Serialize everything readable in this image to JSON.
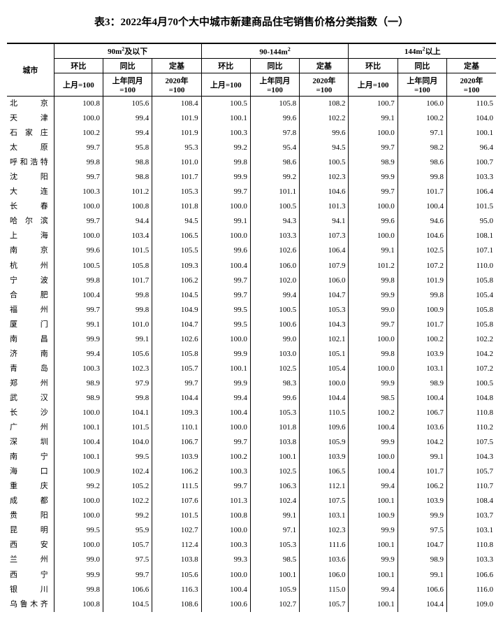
{
  "title": "表3：2022年4月70个大中城市新建商品住宅销售价格分类指数（一）",
  "col_city": "城市",
  "groups": [
    {
      "label_pre": "90m",
      "sup": "2",
      "label_post": "及以下"
    },
    {
      "label_pre": "90-144m",
      "sup": "2",
      "label_post": ""
    },
    {
      "label_pre": "144m",
      "sup": "2",
      "label_post": "以上"
    }
  ],
  "sub_labels": {
    "hb": "环比",
    "tb": "同比",
    "dj": "定基"
  },
  "base_labels": {
    "hb": "上月=100",
    "tb_l1": "上年同月",
    "tb_l2": "=100",
    "dj_l1": "2020年",
    "dj_l2": "=100"
  },
  "rows": [
    {
      "city": "北京",
      "v": [
        100.8,
        105.6,
        108.4,
        100.5,
        105.8,
        108.2,
        100.7,
        106.0,
        110.5
      ]
    },
    {
      "city": "天津",
      "v": [
        100.0,
        99.4,
        101.9,
        100.1,
        99.6,
        102.2,
        99.1,
        100.2,
        104.0
      ]
    },
    {
      "city": "石家庄",
      "v": [
        100.2,
        99.4,
        101.9,
        100.3,
        97.8,
        99.6,
        100.0,
        97.1,
        100.1
      ]
    },
    {
      "city": "太原",
      "v": [
        99.7,
        95.8,
        95.3,
        99.2,
        95.4,
        94.5,
        99.7,
        98.2,
        96.4
      ]
    },
    {
      "city": "呼和浩特",
      "v": [
        99.8,
        98.8,
        101.0,
        99.8,
        98.6,
        100.5,
        98.9,
        98.6,
        100.7
      ]
    },
    {
      "city": "沈阳",
      "v": [
        99.7,
        98.8,
        101.7,
        99.9,
        99.2,
        102.3,
        99.9,
        99.8,
        103.3
      ]
    },
    {
      "city": "大连",
      "v": [
        100.3,
        101.2,
        105.3,
        99.7,
        101.1,
        104.6,
        99.7,
        101.7,
        106.4
      ]
    },
    {
      "city": "长春",
      "v": [
        100.0,
        100.8,
        101.8,
        100.0,
        100.5,
        101.3,
        100.0,
        100.4,
        101.5
      ]
    },
    {
      "city": "哈尔滨",
      "v": [
        99.7,
        94.4,
        94.5,
        99.1,
        94.3,
        94.1,
        99.6,
        94.6,
        95.0
      ]
    },
    {
      "city": "上海",
      "v": [
        100.0,
        103.4,
        106.5,
        100.0,
        103.3,
        107.3,
        100.0,
        104.6,
        108.1
      ]
    },
    {
      "city": "南京",
      "v": [
        99.6,
        101.5,
        105.5,
        99.6,
        102.6,
        106.4,
        99.1,
        102.5,
        107.1
      ]
    },
    {
      "city": "杭州",
      "v": [
        100.5,
        105.8,
        109.3,
        100.4,
        106.0,
        107.9,
        101.2,
        107.2,
        110.0
      ]
    },
    {
      "city": "宁波",
      "v": [
        99.8,
        101.7,
        106.2,
        99.7,
        102.0,
        106.0,
        99.8,
        101.9,
        105.8
      ]
    },
    {
      "city": "合肥",
      "v": [
        100.4,
        99.8,
        104.5,
        99.7,
        99.4,
        104.7,
        99.9,
        99.8,
        105.4
      ]
    },
    {
      "city": "福州",
      "v": [
        99.7,
        99.8,
        104.9,
        99.5,
        100.5,
        105.3,
        99.0,
        100.9,
        105.8
      ]
    },
    {
      "city": "厦门",
      "v": [
        99.1,
        101.0,
        104.7,
        99.5,
        100.6,
        104.3,
        99.7,
        101.7,
        105.8
      ]
    },
    {
      "city": "南昌",
      "v": [
        99.9,
        99.1,
        102.6,
        100.0,
        99.0,
        102.1,
        100.0,
        100.2,
        102.2
      ]
    },
    {
      "city": "济南",
      "v": [
        99.4,
        105.6,
        105.8,
        99.9,
        103.0,
        105.1,
        99.8,
        103.9,
        104.2
      ]
    },
    {
      "city": "青岛",
      "v": [
        100.3,
        102.3,
        105.7,
        100.1,
        102.5,
        105.4,
        100.0,
        103.1,
        107.2
      ]
    },
    {
      "city": "郑州",
      "v": [
        98.9,
        97.9,
        99.7,
        99.9,
        98.3,
        100.0,
        99.9,
        98.9,
        100.5
      ]
    },
    {
      "city": "武汉",
      "v": [
        98.9,
        99.8,
        104.4,
        99.4,
        99.6,
        104.4,
        98.5,
        100.4,
        104.8
      ]
    },
    {
      "city": "长沙",
      "v": [
        100.0,
        104.1,
        109.3,
        100.4,
        105.3,
        110.5,
        100.2,
        106.7,
        110.8
      ]
    },
    {
      "city": "广州",
      "v": [
        100.1,
        101.5,
        110.1,
        100.0,
        101.8,
        109.6,
        100.4,
        103.6,
        110.2
      ]
    },
    {
      "city": "深圳",
      "v": [
        100.4,
        104.0,
        106.7,
        99.7,
        103.8,
        105.9,
        99.9,
        104.2,
        107.5
      ]
    },
    {
      "city": "南宁",
      "v": [
        100.1,
        99.5,
        103.9,
        100.2,
        100.1,
        103.9,
        100.0,
        99.1,
        104.3
      ]
    },
    {
      "city": "海口",
      "v": [
        100.9,
        102.4,
        106.2,
        100.3,
        102.5,
        106.5,
        100.4,
        101.7,
        105.7
      ]
    },
    {
      "city": "重庆",
      "v": [
        99.2,
        105.2,
        111.5,
        99.7,
        106.3,
        112.1,
        99.4,
        106.2,
        110.7
      ]
    },
    {
      "city": "成都",
      "v": [
        100.0,
        102.2,
        107.6,
        101.3,
        102.4,
        107.5,
        100.1,
        103.9,
        108.4
      ]
    },
    {
      "city": "贵阳",
      "v": [
        100.0,
        99.2,
        101.5,
        100.8,
        99.1,
        103.1,
        100.9,
        99.9,
        103.7
      ]
    },
    {
      "city": "昆明",
      "v": [
        99.5,
        95.9,
        102.7,
        100.0,
        97.1,
        102.3,
        99.9,
        97.5,
        103.1
      ]
    },
    {
      "city": "西安",
      "v": [
        100.0,
        105.7,
        112.4,
        100.3,
        105.3,
        111.6,
        100.1,
        104.7,
        110.8
      ]
    },
    {
      "city": "兰州",
      "v": [
        99.0,
        97.5,
        103.8,
        99.3,
        98.5,
        103.6,
        99.9,
        98.9,
        103.3
      ]
    },
    {
      "city": "西宁",
      "v": [
        99.9,
        99.7,
        105.6,
        100.0,
        100.1,
        106.0,
        100.1,
        99.1,
        106.6
      ]
    },
    {
      "city": "银川",
      "v": [
        99.8,
        106.6,
        116.3,
        100.4,
        105.9,
        115.0,
        99.4,
        106.6,
        116.0
      ]
    },
    {
      "city": "乌鲁木齐",
      "v": [
        100.8,
        104.5,
        108.6,
        100.6,
        102.7,
        105.7,
        100.1,
        104.4,
        109.0
      ]
    }
  ]
}
